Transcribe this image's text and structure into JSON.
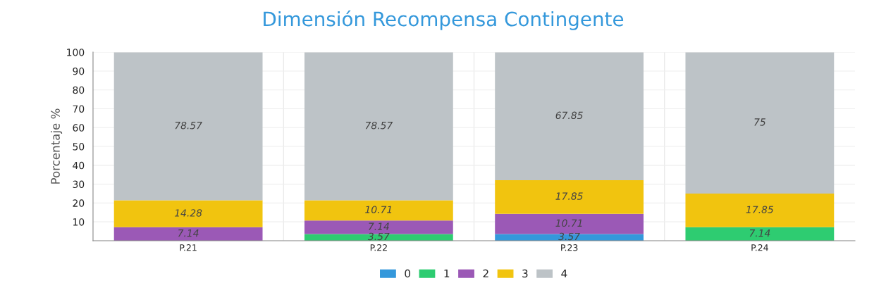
{
  "chart_data": {
    "type": "bar",
    "title": "Dimensión Recompensa Contingente",
    "ylabel": "Porcentaje %",
    "categories": [
      "P.21",
      "P.22",
      "P.23",
      "P.24"
    ],
    "stacked": true,
    "series": [
      {
        "name": "0",
        "color": "#3498db",
        "values": [
          0,
          0,
          3.57,
          0
        ],
        "value_labels": [
          null,
          null,
          "3.57",
          null
        ]
      },
      {
        "name": "1",
        "color": "#2ecc71",
        "values": [
          0,
          3.57,
          0,
          7.14
        ],
        "value_labels": [
          null,
          "3.57",
          null,
          "7.14"
        ]
      },
      {
        "name": "2",
        "color": "#9b59b6",
        "values": [
          7.14,
          7.14,
          10.71,
          0
        ],
        "value_labels": [
          "7.14",
          "7.14",
          "10.71",
          null
        ]
      },
      {
        "name": "3",
        "color": "#f1c40f",
        "values": [
          14.28,
          10.71,
          17.85,
          17.85
        ],
        "value_labels": [
          "14.28",
          "10.71",
          "17.85",
          "17.85"
        ]
      },
      {
        "name": "4",
        "color": "#bdc3c7",
        "values": [
          78.57,
          78.57,
          67.85,
          75
        ],
        "value_labels": [
          "78.57",
          "78.57",
          "67.85",
          "75"
        ]
      }
    ],
    "ylim": [
      0,
      100
    ],
    "yticks": [
      {
        "value": 0,
        "label": null
      },
      10,
      20,
      30,
      40,
      50,
      60,
      70,
      80,
      90,
      100
    ],
    "grid": true,
    "legend": "bottom"
  }
}
